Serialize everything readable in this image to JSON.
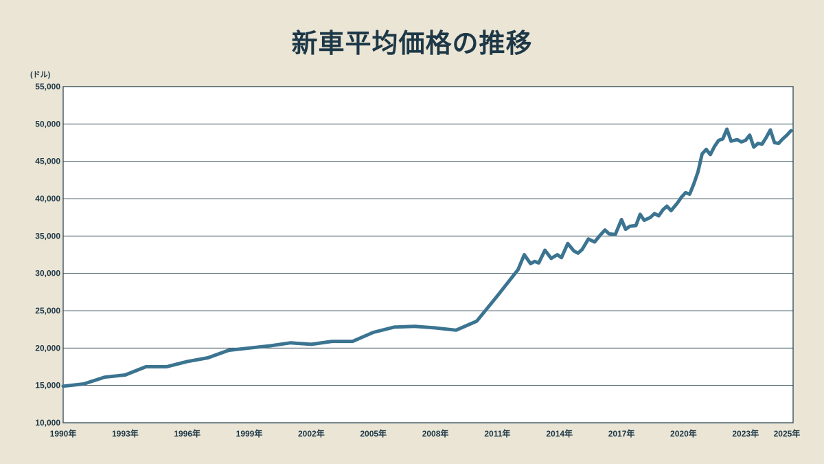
{
  "title": "新車平均価格の推移",
  "chart_data": {
    "type": "line",
    "title": "新車平均価格の推移",
    "ylabel": "(ドル)",
    "xlabel": "",
    "ylim": [
      10000,
      55000
    ],
    "xlim": [
      1990,
      2025.3
    ],
    "grid": true,
    "yticks": [
      10000,
      15000,
      20000,
      25000,
      30000,
      35000,
      40000,
      45000,
      50000,
      55000
    ],
    "ytick_labels": [
      "10,000",
      "15,000",
      "20,000",
      "25,000",
      "30,000",
      "35,000",
      "40,000",
      "45,000",
      "50,000",
      "55,000"
    ],
    "xticks": [
      1990,
      1993,
      1996,
      1999,
      2002,
      2005,
      2008,
      2011,
      2014,
      2017,
      2020,
      2023,
      2025
    ],
    "xtick_labels": [
      "1990年",
      "1993年",
      "1996年",
      "1999年",
      "2002年",
      "2005年",
      "2008年",
      "2011年",
      "2014年",
      "2017年",
      "2020年",
      "2023年",
      "2025年"
    ],
    "line_color": "#3b7490",
    "series": [
      {
        "x": [
          1990,
          1991,
          1992,
          1993,
          1994,
          1995,
          1996,
          1997,
          1998,
          1999,
          2000,
          2001,
          2002,
          2003,
          2004,
          2005,
          2006,
          2007,
          2008,
          2009,
          2010,
          2011,
          2012,
          2012.3,
          2012.6,
          2012.8,
          2013.0,
          2013.3,
          2013.6,
          2013.9,
          2014.1,
          2014.4,
          2014.7,
          2014.9,
          2015.1,
          2015.4,
          2015.7,
          2016.0,
          2016.2,
          2016.4,
          2016.7,
          2017.0,
          2017.2,
          2017.4,
          2017.7,
          2017.9,
          2018.1,
          2018.4,
          2018.6,
          2018.8,
          2019.0,
          2019.2,
          2019.4,
          2019.7,
          2019.9,
          2020.1,
          2020.3,
          2020.5,
          2020.7,
          2020.9,
          2021.1,
          2021.3,
          2021.5,
          2021.7,
          2021.9,
          2022.1,
          2022.3,
          2022.6,
          2022.8,
          2023.0,
          2023.2,
          2023.4,
          2023.6,
          2023.8,
          2024.0,
          2024.2,
          2024.4,
          2024.6,
          2024.8,
          2025.0,
          2025.2
        ],
        "y": [
          14900,
          15200,
          16100,
          16400,
          17500,
          17500,
          18200,
          18700,
          19700,
          20000,
          20300,
          20700,
          20500,
          20900,
          20900,
          22100,
          22800,
          22900,
          22700,
          22400,
          23600,
          27000,
          30500,
          32500,
          31300,
          31600,
          31400,
          33100,
          32000,
          32500,
          32100,
          34000,
          33000,
          32700,
          33200,
          34600,
          34200,
          35200,
          35800,
          35300,
          35200,
          37200,
          35900,
          36300,
          36400,
          37900,
          37100,
          37500,
          38000,
          37700,
          38500,
          39000,
          38400,
          39400,
          40200,
          40800,
          40600,
          42000,
          43600,
          46000,
          46600,
          45900,
          47000,
          47800,
          48000,
          49300,
          47700,
          47900,
          47600,
          47800,
          48500,
          46900,
          47400,
          47300,
          48200,
          49200,
          47500,
          47400,
          48000,
          48500,
          49100
        ]
      }
    ]
  }
}
